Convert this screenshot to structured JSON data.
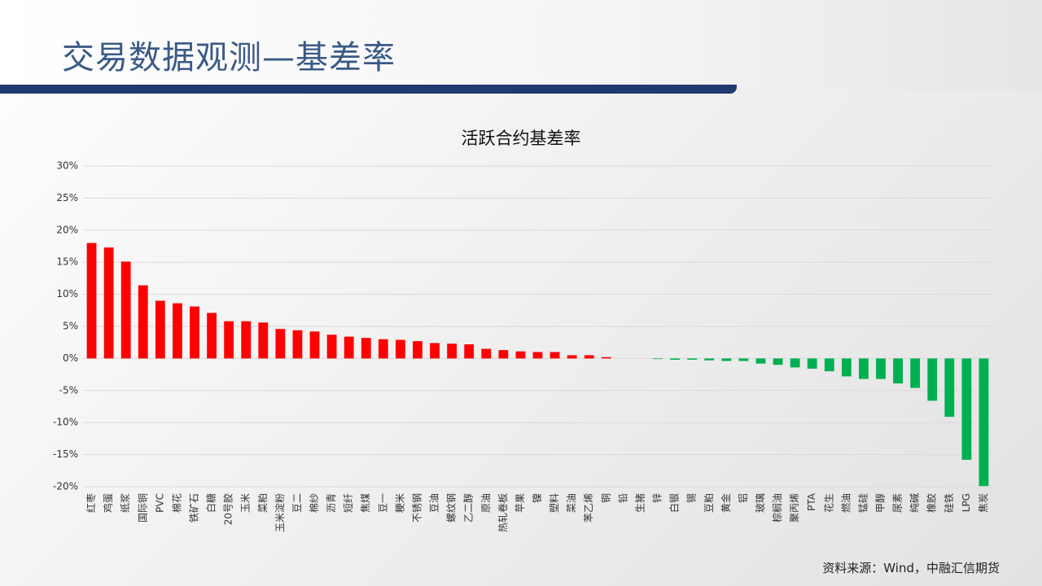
{
  "header": {
    "title": "交易数据观测—基差率"
  },
  "source": "资料来源：Wind，中融汇信期货",
  "chart_data": {
    "type": "bar",
    "title": "活跃合约基差率",
    "categories": [
      "红枣",
      "鸡蛋",
      "纸浆",
      "国际铜",
      "PVC",
      "棉花",
      "铁矿石",
      "白糖",
      "20号胶",
      "玉米",
      "菜粕",
      "玉米淀粉",
      "豆二",
      "棉纱",
      "沥青",
      "短纤",
      "焦煤",
      "豆一",
      "粳米",
      "不锈钢",
      "豆油",
      "螺纹钢",
      "乙二醇",
      "原油",
      "热轧卷板",
      "苹果",
      "镍",
      "塑料",
      "菜油",
      "苯乙烯",
      "铜",
      "铅",
      "生猪",
      "锌",
      "白银",
      "锡",
      "豆粕",
      "黄金",
      "铝",
      "玻璃",
      "棕榈油",
      "聚丙烯",
      "PTA",
      "花生",
      "燃油",
      "锰硅",
      "甲醇",
      "尿素",
      "纯碱",
      "橡胶",
      "硅铁",
      "LPG",
      "焦炭"
    ],
    "values": [
      18.0,
      17.3,
      15.1,
      11.4,
      9.0,
      8.6,
      8.1,
      7.1,
      5.8,
      5.8,
      5.6,
      4.6,
      4.4,
      4.2,
      3.7,
      3.4,
      3.2,
      3.0,
      2.9,
      2.7,
      2.4,
      2.3,
      2.2,
      1.5,
      1.3,
      1.1,
      1.0,
      1.0,
      0.5,
      0.5,
      0.2,
      0.0,
      0.0,
      -0.1,
      -0.2,
      -0.2,
      -0.3,
      -0.4,
      -0.4,
      -0.8,
      -1.0,
      -1.4,
      -1.6,
      -2.0,
      -2.8,
      -3.2,
      -3.2,
      -3.9,
      -4.6,
      -6.6,
      -9.1,
      -15.8,
      -19.9
    ],
    "colors": {
      "positive": "#ff0000",
      "negative": "#00b050"
    },
    "ylim": [
      -20,
      30
    ],
    "yticks": [
      {
        "value": -20,
        "label": "-20%"
      },
      {
        "value": -15,
        "label": "-15%"
      },
      {
        "value": -10,
        "label": "-10%"
      },
      {
        "value": -5,
        "label": "-5%"
      },
      {
        "value": 0,
        "label": "0%"
      },
      {
        "value": 5,
        "label": "5%"
      },
      {
        "value": 10,
        "label": "10%"
      },
      {
        "value": 15,
        "label": "15%"
      },
      {
        "value": 20,
        "label": "20%"
      },
      {
        "value": 25,
        "label": "25%"
      },
      {
        "value": 30,
        "label": "30%"
      }
    ],
    "grid": true
  }
}
